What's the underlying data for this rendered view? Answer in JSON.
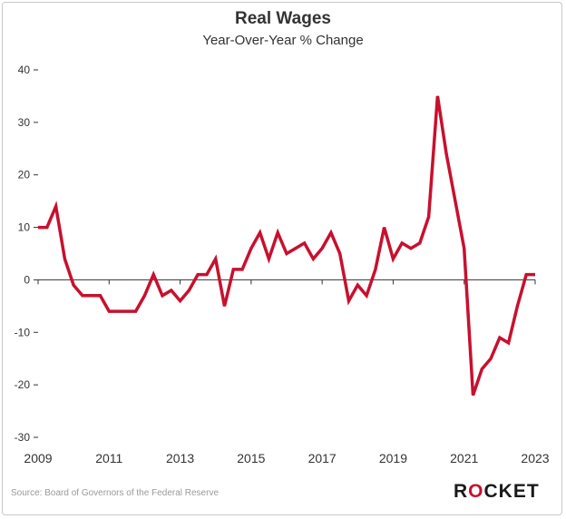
{
  "header": {
    "title": "Real Wages",
    "subtitle": "Year-Over-Year % Change"
  },
  "footer": {
    "source": "Source: Board of Governors of the Federal Reserve",
    "logo_text": "ROCKET"
  },
  "colors": {
    "line": "#c8102e",
    "axis": "#333333",
    "grid": "#e6e6e6",
    "border": "#c8c8c8",
    "logo_accent": "#c8102e"
  },
  "chart_data": {
    "type": "line",
    "title": "Real Wages",
    "subtitle": "Year-Over-Year % Change",
    "xlabel": "",
    "ylabel": "",
    "xlim": [
      2009,
      2023
    ],
    "ylim": [
      -30,
      40
    ],
    "x_ticks": [
      2009,
      2011,
      2013,
      2015,
      2017,
      2019,
      2021,
      2023
    ],
    "y_ticks": [
      40,
      30,
      20,
      10,
      0,
      -10,
      -20,
      -30
    ],
    "grid": false,
    "series": [
      {
        "x": [
          2009.0,
          2009.25,
          2009.5,
          2009.75,
          2010.0,
          2010.25,
          2010.5,
          2010.75,
          2011.0,
          2011.25,
          2011.5,
          2011.75,
          2012.0,
          2012.25,
          2012.5,
          2012.75,
          2013.0,
          2013.25,
          2013.5,
          2013.75,
          2014.0,
          2014.25,
          2014.5,
          2014.75,
          2015.0,
          2015.25,
          2015.5,
          2015.75,
          2016.0,
          2016.25,
          2016.5,
          2016.75,
          2017.0,
          2017.25,
          2017.5,
          2017.75,
          2018.0,
          2018.25,
          2018.5,
          2018.75,
          2019.0,
          2019.25,
          2019.5,
          2019.75,
          2020.0,
          2020.25,
          2020.5,
          2020.75,
          2021.0,
          2021.25,
          2021.5,
          2021.75,
          2022.0,
          2022.25,
          2022.5,
          2022.75,
          2023.0
        ],
        "values": [
          10,
          10,
          14,
          4,
          -1,
          -3,
          -3,
          -3,
          -6,
          -6,
          -6,
          -6,
          -3,
          1,
          -3,
          -2,
          -4,
          -2,
          1,
          1,
          4,
          -5,
          2,
          2,
          6,
          9,
          4,
          9,
          5,
          6,
          7,
          4,
          6,
          9,
          5,
          -4,
          -1,
          -3,
          2,
          10,
          4,
          7,
          6,
          7,
          12,
          35,
          24,
          15,
          6,
          -22,
          -17,
          -15,
          -11,
          -12,
          -5,
          1,
          1
        ]
      }
    ]
  }
}
